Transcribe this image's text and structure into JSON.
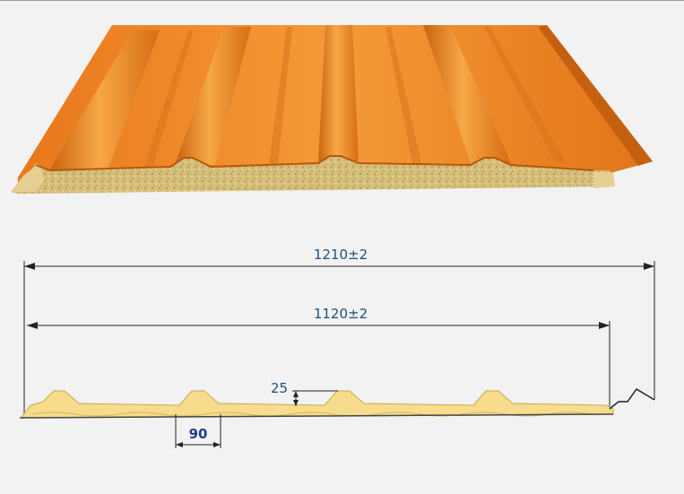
{
  "dimensions": {
    "overall_width": "1210±2",
    "covering_width": "1120±2",
    "rib_height": "25",
    "rib_base": "90"
  },
  "colors": {
    "background": "#f2f2f2",
    "metal_sheet": "#f08a26",
    "mineral_wool_core": "#d9c27e",
    "profile_fill": "#f7df8e",
    "dimension_line": "#222222",
    "dimension_text": "#1f4f7a"
  },
  "illustration": {
    "panel_type": "sandwich-panel-3d-view",
    "profile_type": "trapezoidal-profile-cross-section",
    "rib_count": 4
  }
}
